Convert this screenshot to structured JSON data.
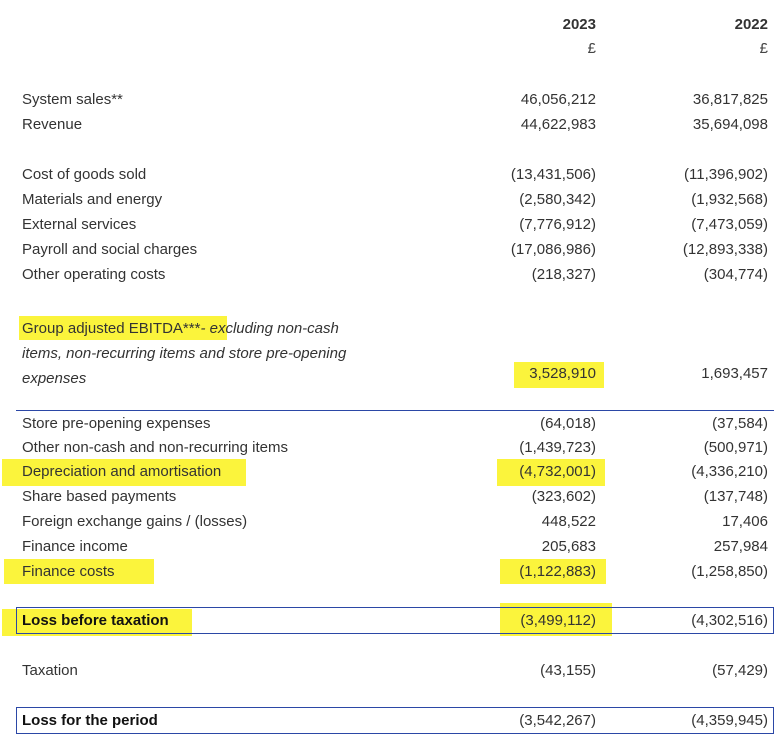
{
  "header": {
    "year_2023": "2023",
    "year_2022": "2022",
    "currency_2023": "£",
    "currency_2022": "£"
  },
  "rows_top": [
    {
      "label": "System sales**",
      "v2023": "46,056,212",
      "v2022": "36,817,825"
    },
    {
      "label": "Revenue",
      "v2023": "44,622,983",
      "v2022": "35,694,098"
    }
  ],
  "rows_costs": [
    {
      "label": "Cost of goods sold",
      "v2023": "(13,431,506)",
      "v2022": "(11,396,902)"
    },
    {
      "label": "Materials and energy",
      "v2023": "(2,580,342)",
      "v2022": "(1,932,568)"
    },
    {
      "label": "External services",
      "v2023": "(7,776,912)",
      "v2022": "(7,473,059)"
    },
    {
      "label": "Payroll and social charges",
      "v2023": "(17,086,986)",
      "v2022": "(12,893,338)"
    },
    {
      "label": "Other operating costs",
      "v2023": "(218,327)",
      "v2022": "(304,774)"
    }
  ],
  "ebitda": {
    "label_main": "Group adjusted EBITDA***",
    "label_italic": "- excluding non-cash items, non-recurring items and store pre-opening expenses",
    "v2023": "3,528,910",
    "v2022": "1,693,457"
  },
  "rows_adjust": [
    {
      "label": "Store pre-opening expenses",
      "v2023": "(64,018)",
      "v2022": "(37,584)"
    },
    {
      "label": "Other non-cash and non-recurring items",
      "v2023": "(1,439,723)",
      "v2022": "(500,971)"
    },
    {
      "label": "Depreciation and amortisation",
      "v2023": "(4,732,001)",
      "v2022": "(4,336,210)"
    },
    {
      "label": "Share based payments",
      "v2023": "(323,602)",
      "v2022": "(137,748)"
    },
    {
      "label": "Foreign exchange gains / (losses)",
      "v2023": "448,522",
      "v2022": "17,406"
    },
    {
      "label": "Finance income",
      "v2023": "205,683",
      "v2022": "257,984"
    },
    {
      "label": "Finance costs",
      "v2023": "(1,122,883)",
      "v2022": "(1,258,850)"
    }
  ],
  "loss_before_tax": {
    "label": "Loss before taxation",
    "v2023": "(3,499,112)",
    "v2022": "(4,302,516)"
  },
  "taxation": {
    "label": "Taxation",
    "v2023": "(43,155)",
    "v2022": "(57,429)"
  },
  "loss_period": {
    "label": "Loss for the period",
    "v2023": "(3,542,267)",
    "v2022": "(4,359,945)"
  },
  "highlight_color": "#fbf43c",
  "rule_color": "#2b47a6"
}
